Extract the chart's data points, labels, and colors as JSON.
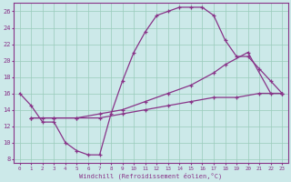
{
  "xlabel": "Windchill (Refroidissement éolien,°C)",
  "xlim": [
    -0.5,
    23.5
  ],
  "ylim": [
    7.5,
    27
  ],
  "xticks": [
    0,
    1,
    2,
    3,
    4,
    5,
    6,
    7,
    8,
    9,
    10,
    11,
    12,
    13,
    14,
    15,
    16,
    17,
    18,
    19,
    20,
    21,
    22,
    23
  ],
  "yticks": [
    8,
    10,
    12,
    14,
    16,
    18,
    20,
    22,
    24,
    26
  ],
  "bg_color": "#cce9e9",
  "grid_color": "#99ccbb",
  "line_color": "#883388",
  "curve1_x": [
    0,
    1,
    2,
    3,
    4,
    5,
    6,
    7,
    8,
    9,
    10,
    11,
    12,
    13,
    14,
    15,
    16,
    17,
    18,
    19,
    20,
    21,
    22,
    23
  ],
  "curve1_y": [
    16,
    14.5,
    12.5,
    12.5,
    10,
    9,
    8.5,
    8.5,
    13.5,
    17.5,
    21,
    23.5,
    25.5,
    26,
    26.5,
    26.5,
    26.5,
    25.5,
    22.5,
    20.5,
    20.5,
    19,
    17.5,
    16
  ],
  "curve2_x": [
    1,
    2,
    3,
    5,
    7,
    9,
    11,
    13,
    15,
    17,
    18,
    20,
    22,
    23
  ],
  "curve2_y": [
    13,
    13,
    13,
    13,
    13.5,
    14,
    15,
    16,
    17,
    18.5,
    19.5,
    21,
    16,
    16
  ],
  "curve3_x": [
    1,
    3,
    5,
    7,
    9,
    11,
    13,
    15,
    17,
    19,
    21,
    23
  ],
  "curve3_y": [
    13,
    13,
    13,
    13,
    13.5,
    14,
    14.5,
    15,
    15.5,
    15.5,
    16,
    16
  ]
}
